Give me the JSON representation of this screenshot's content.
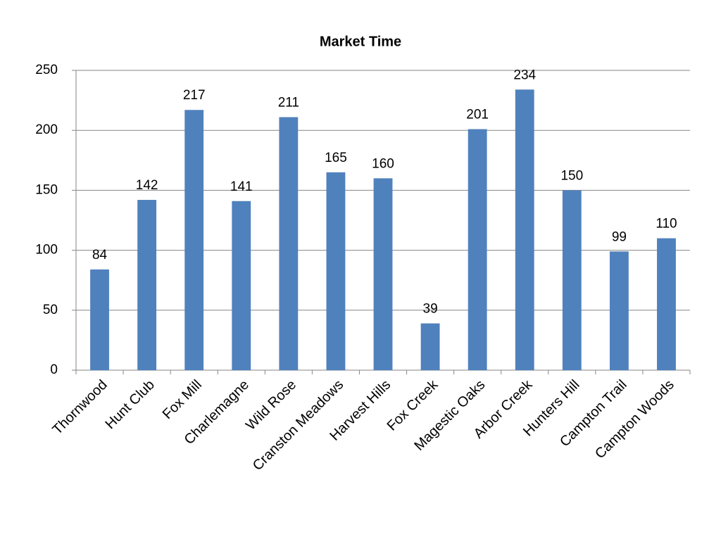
{
  "chart_data": {
    "type": "bar",
    "title": "Market Time",
    "categories": [
      "Thornwood",
      "Hunt Club",
      "Fox Mill",
      "Charlemagne",
      "Wild Rose",
      "Cranston Meadows",
      "Harvest Hills",
      "Fox Creek",
      "Magestic Oaks",
      "Arbor Creek",
      "Hunters Hill",
      "Campton Trail",
      "Campton Woods"
    ],
    "values": [
      84,
      142,
      217,
      141,
      211,
      165,
      160,
      39,
      201,
      234,
      150,
      99,
      110
    ],
    "color": "#4f81bd",
    "ylim": [
      0,
      250
    ],
    "yticks": [
      0,
      50,
      100,
      150,
      200,
      250
    ],
    "grid": true,
    "data_labels": true
  }
}
